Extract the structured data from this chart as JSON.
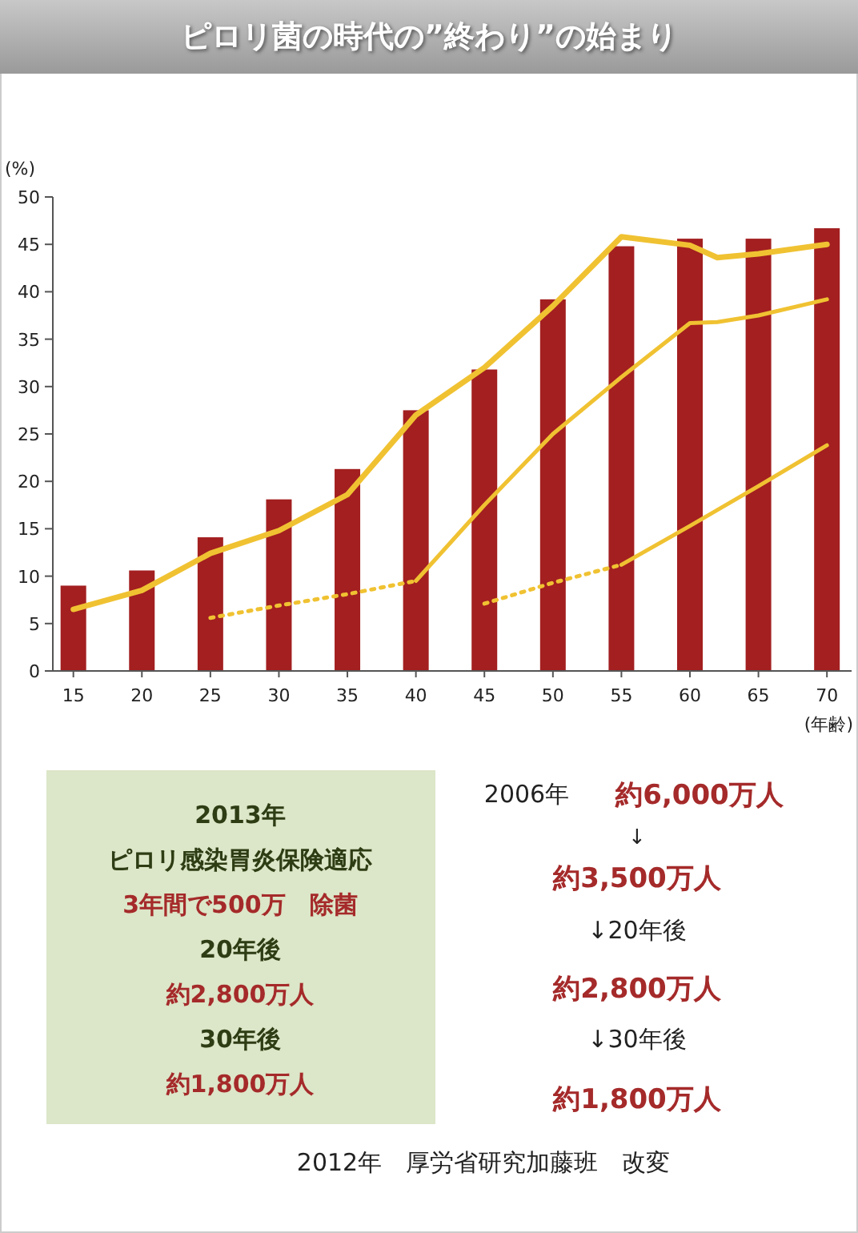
{
  "chart_data": [
    {
      "type": "bar",
      "title": "ピロリ菌の時代の”終わり”の始まり",
      "xlabel": "(年齢)",
      "ylabel": "(%)",
      "x": [
        15,
        20,
        25,
        30,
        35,
        40,
        45,
        50,
        55,
        60,
        65,
        70
      ],
      "xlim": [
        13.5,
        71.8
      ],
      "ylim": [
        0,
        50
      ],
      "xticks": [
        15,
        20,
        25,
        30,
        35,
        40,
        45,
        50,
        55,
        60,
        65,
        70
      ],
      "yticks": [
        0,
        5,
        10,
        15,
        20,
        25,
        30,
        35,
        40,
        45,
        50
      ],
      "series": [
        {
          "type": "bar",
          "color": "#a31f20",
          "values": [
            9,
            10.6,
            14.1,
            18.1,
            21.3,
            27.5,
            31.8,
            39.2,
            44.8,
            45.6,
            45.6,
            46.7
          ]
        },
        {
          "type": "line",
          "color": "#f0c232",
          "line_style": "solid",
          "x": [
            15,
            20,
            25,
            30,
            35,
            40,
            45,
            50,
            55,
            60,
            62,
            65,
            70
          ],
          "values": [
            6.5,
            8.5,
            12.4,
            14.8,
            18.6,
            27,
            32,
            38.5,
            45.8,
            44.9,
            43.6,
            44,
            45
          ]
        },
        {
          "type": "line",
          "color": "#f0c232",
          "line_style": "dotted",
          "x": [
            25,
            30,
            35,
            40
          ],
          "values": [
            5.6,
            6.9,
            8.1,
            9.5
          ]
        },
        {
          "type": "line",
          "color": "#f0c232",
          "line_style": "solid",
          "x": [
            40,
            45,
            50,
            55,
            60,
            62,
            65,
            70
          ],
          "values": [
            9.5,
            17.5,
            25,
            31,
            36.7,
            36.8,
            37.5,
            39.2
          ]
        },
        {
          "type": "line",
          "color": "#f0c232",
          "line_style": "dotted",
          "x": [
            45,
            50,
            55
          ],
          "values": [
            7.1,
            9.3,
            11.2
          ]
        },
        {
          "type": "line",
          "color": "#f0c232",
          "line_style": "solid",
          "x": [
            55,
            60,
            65,
            70
          ],
          "values": [
            11.2,
            15.3,
            19.5,
            23.8
          ]
        }
      ]
    },
    {
      "type": "other",
      "annotations": [
        "2013年",
        "ピロリ感染胃炎保険適応",
        "3年間で500万　除菌",
        "20年後",
        "約2,800万人",
        "30年後",
        "約1,800万人",
        "2006年",
        "約6,000万人",
        "↓",
        "約3,500万人",
        "↓20年後",
        "約2,800万人",
        "↓30年後",
        "約1,800万人",
        "2012年　厚労省研究加藤班　改変"
      ]
    }
  ]
}
